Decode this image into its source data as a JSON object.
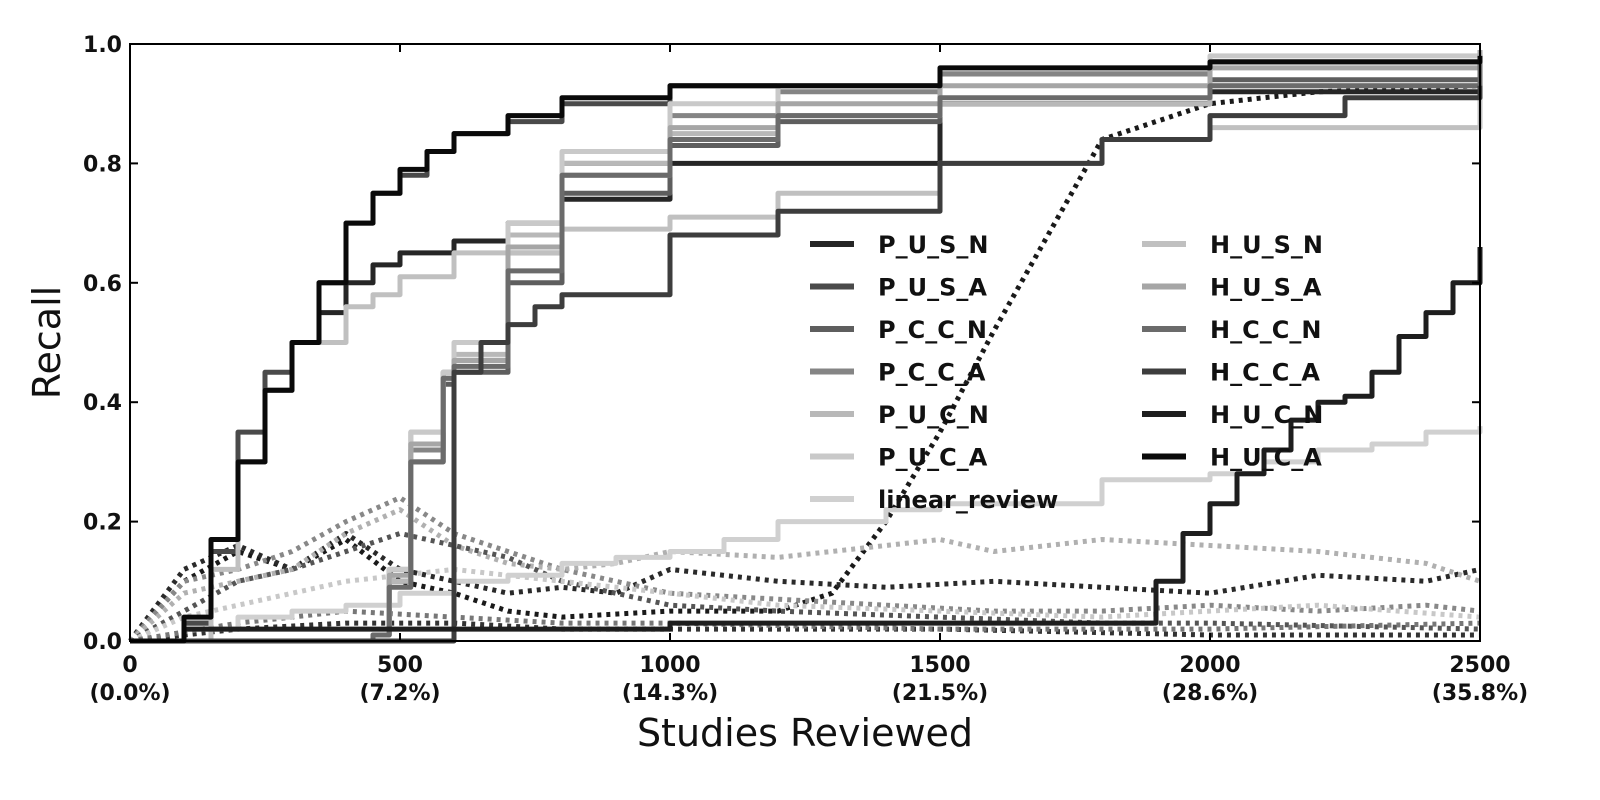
{
  "chart_data": {
    "type": "line",
    "xlabel": "Studies Reviewed",
    "ylabel": "Recall",
    "xlim": [
      0,
      2500
    ],
    "ylim": [
      0,
      1.0
    ],
    "grid": false,
    "legend_position": "center-right",
    "x_ticks": [
      {
        "value": 0,
        "label": "0",
        "sublabel": "(0.0%)"
      },
      {
        "value": 500,
        "label": "500",
        "sublabel": "(7.2%)"
      },
      {
        "value": 1000,
        "label": "1000",
        "sublabel": "(14.3%)"
      },
      {
        "value": 1500,
        "label": "1500",
        "sublabel": "(21.5%)"
      },
      {
        "value": 2000,
        "label": "2000",
        "sublabel": "(28.6%)"
      },
      {
        "value": 2500,
        "label": "2500",
        "sublabel": "(35.8%)"
      }
    ],
    "y_ticks": [
      {
        "value": 0.0,
        "label": "0.0"
      },
      {
        "value": 0.2,
        "label": "0.2"
      },
      {
        "value": 0.4,
        "label": "0.4"
      },
      {
        "value": 0.6,
        "label": "0.6"
      },
      {
        "value": 0.8,
        "label": "0.8"
      },
      {
        "value": 1.0,
        "label": "1.0"
      }
    ],
    "series": [
      {
        "name": "P_U_S_N",
        "color": "#262626",
        "x": [
          0,
          80,
          100,
          150,
          200,
          250,
          300,
          350,
          400,
          450,
          500,
          600,
          700,
          800,
          1000,
          1500,
          2000,
          2500
        ],
        "y": [
          0,
          0,
          0.03,
          0.15,
          0.3,
          0.42,
          0.5,
          0.55,
          0.6,
          0.63,
          0.65,
          0.67,
          0.7,
          0.74,
          0.8,
          0.9,
          0.92,
          0.93
        ]
      },
      {
        "name": "P_U_S_A",
        "color": "#4a4a4a",
        "x": [
          0,
          80,
          100,
          150,
          200,
          250,
          300,
          350,
          400,
          450,
          500,
          550,
          600,
          700,
          800,
          1000,
          1500,
          2000,
          2500
        ],
        "y": [
          0,
          0,
          0.03,
          0.15,
          0.35,
          0.45,
          0.5,
          0.6,
          0.7,
          0.75,
          0.78,
          0.82,
          0.85,
          0.87,
          0.9,
          0.93,
          0.95,
          0.97,
          0.98
        ]
      },
      {
        "name": "P_C_C_N",
        "color": "#5e5e5e",
        "x": [
          0,
          80,
          450,
          480,
          520,
          580,
          600,
          700,
          800,
          1000,
          1200,
          1500,
          2000,
          2500
        ],
        "y": [
          0,
          0,
          0.01,
          0.1,
          0.3,
          0.43,
          0.45,
          0.6,
          0.75,
          0.83,
          0.87,
          0.9,
          0.94,
          0.98
        ]
      },
      {
        "name": "P_C_C_A",
        "color": "#858585",
        "x": [
          0,
          80,
          450,
          480,
          520,
          580,
          600,
          700,
          800,
          1000,
          1200,
          1500,
          2000,
          2500
        ],
        "y": [
          0,
          0,
          0.01,
          0.12,
          0.32,
          0.45,
          0.47,
          0.65,
          0.8,
          0.88,
          0.92,
          0.95,
          0.97,
          0.99
        ]
      },
      {
        "name": "P_U_C_N",
        "color": "#b8b8b8",
        "x": [
          0,
          80,
          450,
          480,
          520,
          580,
          600,
          700,
          800,
          1000,
          1200,
          1500,
          2000,
          2500
        ],
        "y": [
          0,
          0,
          0.01,
          0.1,
          0.35,
          0.44,
          0.48,
          0.68,
          0.8,
          0.85,
          0.88,
          0.9,
          0.93,
          0.97
        ]
      },
      {
        "name": "P_U_C_A",
        "color": "#c9c9c9",
        "x": [
          0,
          80,
          450,
          480,
          520,
          580,
          600,
          700,
          800,
          1000,
          1200,
          1500,
          2000,
          2500
        ],
        "y": [
          0,
          0,
          0.01,
          0.12,
          0.35,
          0.45,
          0.5,
          0.7,
          0.82,
          0.9,
          0.93,
          0.96,
          0.98,
          0.99
        ]
      },
      {
        "name": "linear_review",
        "color": "#d0d0d0",
        "x": [
          0,
          100,
          200,
          300,
          400,
          500,
          600,
          700,
          800,
          900,
          1000,
          1100,
          1200,
          1400,
          1500,
          1800,
          2000,
          2100,
          2200,
          2300,
          2400,
          2500
        ],
        "y": [
          0,
          0.02,
          0.04,
          0.05,
          0.06,
          0.08,
          0.1,
          0.11,
          0.13,
          0.14,
          0.15,
          0.17,
          0.2,
          0.22,
          0.23,
          0.27,
          0.28,
          0.3,
          0.32,
          0.33,
          0.35,
          0.36
        ]
      },
      {
        "name": "H_U_S_N",
        "color": "#c0c0c0",
        "x": [
          0,
          80,
          150,
          200,
          250,
          300,
          400,
          450,
          500,
          600,
          800,
          1000,
          1200,
          1500,
          1800,
          2000,
          2500
        ],
        "y": [
          0,
          0,
          0.12,
          0.3,
          0.42,
          0.5,
          0.56,
          0.58,
          0.61,
          0.65,
          0.69,
          0.71,
          0.75,
          0.8,
          0.84,
          0.86,
          0.91
        ]
      },
      {
        "name": "H_U_S_A",
        "color": "#a6a6a6",
        "x": [
          0,
          80,
          450,
          480,
          520,
          580,
          600,
          700,
          800,
          1000,
          1200,
          1500,
          2000,
          2500
        ],
        "y": [
          0,
          0,
          0.01,
          0.11,
          0.33,
          0.44,
          0.47,
          0.66,
          0.78,
          0.86,
          0.9,
          0.93,
          0.96,
          0.99
        ]
      },
      {
        "name": "H_C_C_N",
        "color": "#6b6b6b",
        "x": [
          0,
          80,
          450,
          480,
          520,
          580,
          600,
          700,
          800,
          1000,
          1200,
          1500,
          2000,
          2500
        ],
        "y": [
          0,
          0,
          0.01,
          0.09,
          0.3,
          0.44,
          0.46,
          0.62,
          0.78,
          0.84,
          0.88,
          0.91,
          0.93,
          0.97
        ]
      },
      {
        "name": "H_C_C_A",
        "color": "#3d3d3d",
        "x": [
          0,
          80,
          600,
          650,
          700,
          750,
          800,
          1000,
          1200,
          1500,
          1800,
          2000,
          2250,
          2500
        ],
        "y": [
          0,
          0,
          0.45,
          0.5,
          0.53,
          0.56,
          0.58,
          0.68,
          0.72,
          0.8,
          0.84,
          0.88,
          0.91,
          0.93
        ]
      },
      {
        "name": "H_U_C_N",
        "color": "#1e1e1e",
        "x": [
          0,
          80,
          100,
          500,
          1000,
          1500,
          1850,
          1900,
          1950,
          2000,
          2050,
          2100,
          2150,
          2200,
          2250,
          2300,
          2350,
          2400,
          2450,
          2500
        ],
        "y": [
          0,
          0,
          0.02,
          0.02,
          0.03,
          0.03,
          0.03,
          0.1,
          0.18,
          0.23,
          0.28,
          0.32,
          0.37,
          0.4,
          0.41,
          0.45,
          0.51,
          0.55,
          0.6,
          0.66
        ]
      },
      {
        "name": "H_U_C_A",
        "color": "#0a0a0a",
        "x": [
          0,
          80,
          100,
          150,
          200,
          250,
          300,
          350,
          400,
          450,
          500,
          550,
          600,
          700,
          800,
          1000,
          1500,
          2000,
          2500
        ],
        "y": [
          0,
          0,
          0.04,
          0.17,
          0.3,
          0.42,
          0.5,
          0.6,
          0.7,
          0.75,
          0.79,
          0.82,
          0.85,
          0.88,
          0.91,
          0.93,
          0.96,
          0.97,
          0.98
        ]
      }
    ],
    "dotted_series": [
      {
        "color": "#1a1a1a",
        "x": [
          0,
          100,
          200,
          300,
          400,
          500,
          600,
          700,
          800,
          1000,
          1200,
          1300,
          1400,
          1500,
          1600,
          1700,
          1750,
          1800,
          2000,
          2200,
          2500
        ],
        "y": [
          0,
          0.1,
          0.15,
          0.12,
          0.17,
          0.1,
          0.08,
          0.05,
          0.04,
          0.05,
          0.05,
          0.08,
          0.2,
          0.35,
          0.52,
          0.68,
          0.76,
          0.84,
          0.9,
          0.92,
          0.93
        ]
      },
      {
        "color": "#2a2a2a",
        "x": [
          0,
          100,
          200,
          300,
          400,
          500,
          600,
          700,
          800,
          900,
          1000,
          1200,
          1400,
          1600,
          1800,
          2000,
          2200,
          2400,
          2500
        ],
        "y": [
          0,
          0.12,
          0.16,
          0.12,
          0.18,
          0.12,
          0.1,
          0.08,
          0.09,
          0.08,
          0.12,
          0.1,
          0.09,
          0.1,
          0.09,
          0.08,
          0.11,
          0.1,
          0.12
        ]
      },
      {
        "color": "#888888",
        "x": [
          0,
          100,
          200,
          300,
          400,
          500,
          600,
          700,
          800,
          900,
          1000,
          1200,
          1400,
          1600,
          1800,
          2000,
          2200,
          2400,
          2500
        ],
        "y": [
          0,
          0.1,
          0.12,
          0.15,
          0.2,
          0.24,
          0.18,
          0.15,
          0.12,
          0.1,
          0.08,
          0.07,
          0.06,
          0.05,
          0.05,
          0.06,
          0.05,
          0.06,
          0.05
        ]
      },
      {
        "color": "#b0b0b0",
        "x": [
          0,
          100,
          200,
          300,
          400,
          500,
          600,
          700,
          800,
          900,
          1000,
          1200,
          1400,
          1500,
          1600,
          1700,
          1800,
          2000,
          2200,
          2400,
          2500
        ],
        "y": [
          0,
          0.08,
          0.1,
          0.12,
          0.18,
          0.22,
          0.16,
          0.13,
          0.12,
          0.13,
          0.15,
          0.14,
          0.16,
          0.17,
          0.15,
          0.16,
          0.17,
          0.16,
          0.15,
          0.13,
          0.1
        ]
      },
      {
        "color": "#555555",
        "x": [
          0,
          100,
          200,
          300,
          400,
          500,
          600,
          700,
          800,
          1000,
          1200,
          1500,
          1800,
          2000,
          2500
        ],
        "y": [
          0,
          0.05,
          0.1,
          0.12,
          0.15,
          0.18,
          0.16,
          0.14,
          0.1,
          0.06,
          0.05,
          0.04,
          0.03,
          0.03,
          0.02
        ]
      },
      {
        "color": "#c8c8c8",
        "x": [
          0,
          100,
          200,
          400,
          600,
          800,
          1000,
          1200,
          1500,
          1800,
          2000,
          2200,
          2500
        ],
        "y": [
          0,
          0.04,
          0.06,
          0.1,
          0.12,
          0.1,
          0.08,
          0.06,
          0.05,
          0.04,
          0.05,
          0.06,
          0.04
        ]
      },
      {
        "color": "#333333",
        "x": [
          0,
          200,
          400,
          600,
          800,
          1000,
          1500,
          2000,
          2500
        ],
        "y": [
          0,
          0.02,
          0.03,
          0.03,
          0.02,
          0.02,
          0.02,
          0.01,
          0.01
        ]
      },
      {
        "color": "#777777",
        "x": [
          0,
          200,
          400,
          600,
          800,
          1000,
          1500,
          2000,
          2500
        ],
        "y": [
          0,
          0.03,
          0.05,
          0.04,
          0.03,
          0.03,
          0.02,
          0.02,
          0.03
        ]
      }
    ]
  }
}
